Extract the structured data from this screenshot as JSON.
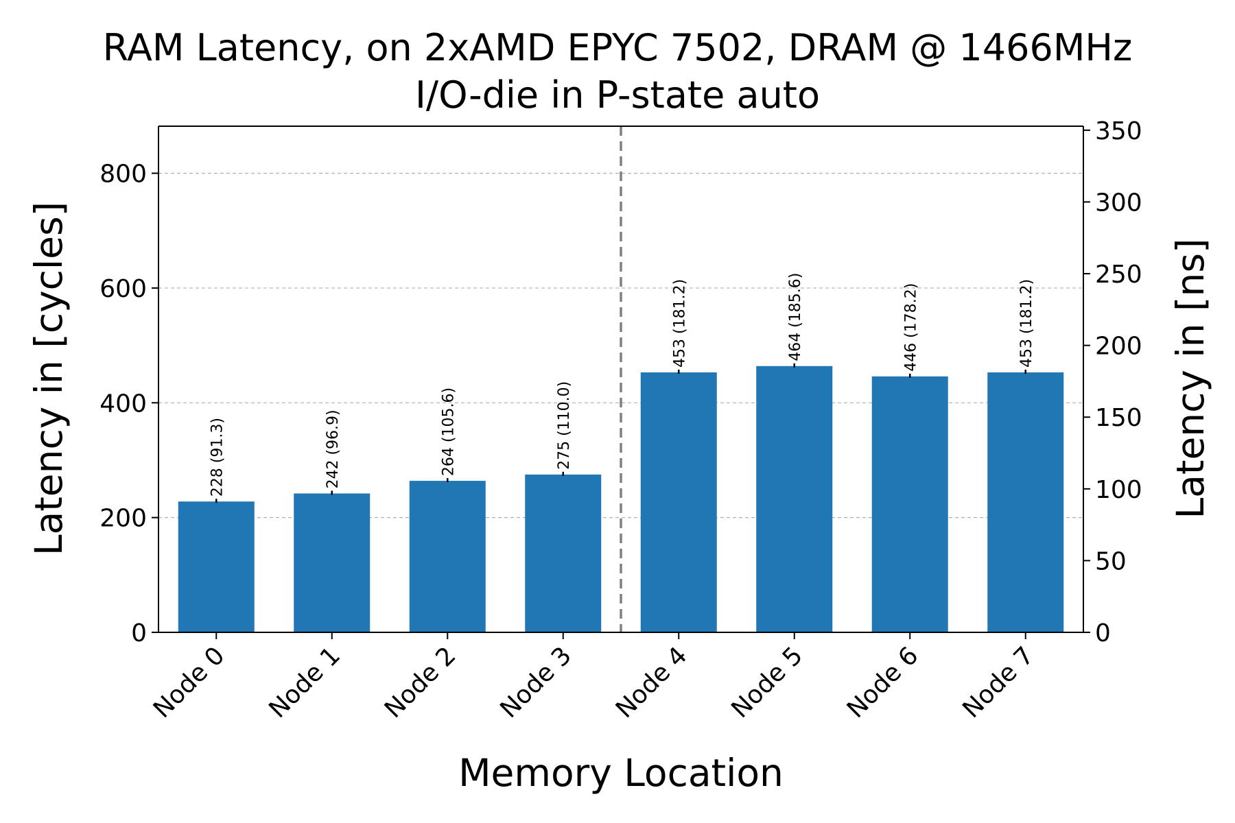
{
  "chart_data": {
    "type": "bar",
    "title": "RAM Latency, on 2xAMD EPYC 7502, DRAM @ 1466MHz",
    "subtitle": "I/O-die in P-state auto",
    "xlabel": "Memory Location",
    "ylabel": "Latency in [cycles]",
    "ylabel_right": "Latency in [ns]",
    "categories": [
      "Node 0",
      "Node 1",
      "Node 2",
      "Node 3",
      "Node 4",
      "Node 5",
      "Node 6",
      "Node 7"
    ],
    "values": [
      228,
      242,
      264,
      275,
      453,
      464,
      446,
      453
    ],
    "values_ns": [
      91.3,
      96.9,
      105.6,
      110.0,
      181.2,
      185.6,
      178.2,
      181.2
    ],
    "bar_labels": [
      "228 (91.3)",
      "242 (96.9)",
      "264 (105.6)",
      "275 (110.0)",
      "453 (181.2)",
      "464 (185.6)",
      "446 (178.2)",
      "453 (181.2)"
    ],
    "ylim": [
      0,
      882
    ],
    "yticks": [
      0,
      200,
      400,
      600,
      800
    ],
    "ylim_right": [
      0,
      352.8
    ],
    "yticks_right": [
      0,
      50,
      100,
      150,
      200,
      250,
      300,
      350
    ],
    "divider_after_category": "Node 3",
    "grid": true,
    "bar_color": "#2077b4",
    "grid_color": "#b0b0b0",
    "divider_color": "#808080"
  }
}
